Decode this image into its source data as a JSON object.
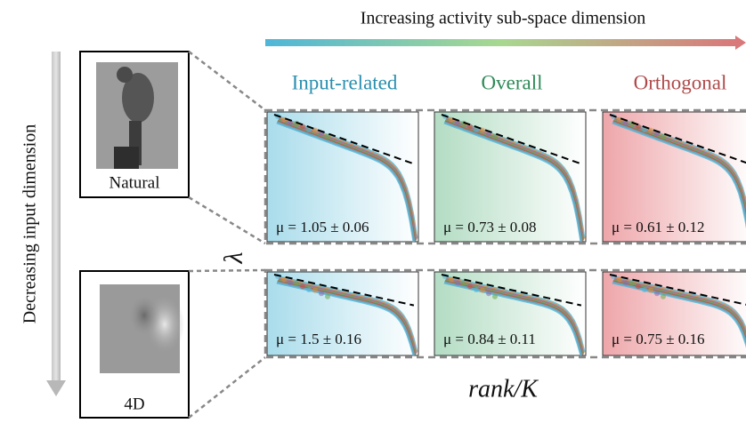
{
  "header": {
    "title": "Increasing activity sub-space dimension",
    "side_label": "Decreasing input dimension"
  },
  "columns": [
    {
      "label": "Input-related"
    },
    {
      "label": "Overall"
    },
    {
      "label": "Orthogonal"
    }
  ],
  "rows": [
    {
      "label": "Natural",
      "panels": [
        "μ = 1.05 ± 0.06",
        "μ = 0.73 ± 0.08",
        "μ = 0.61 ± 0.12"
      ]
    },
    {
      "label": "4D",
      "panels": [
        "μ = 1.5 ± 0.16",
        "μ = 0.84 ± 0.11",
        "μ = 0.75 ± 0.16"
      ]
    }
  ],
  "axes": {
    "y_label": "λ",
    "x_label": "rank/K"
  }
}
